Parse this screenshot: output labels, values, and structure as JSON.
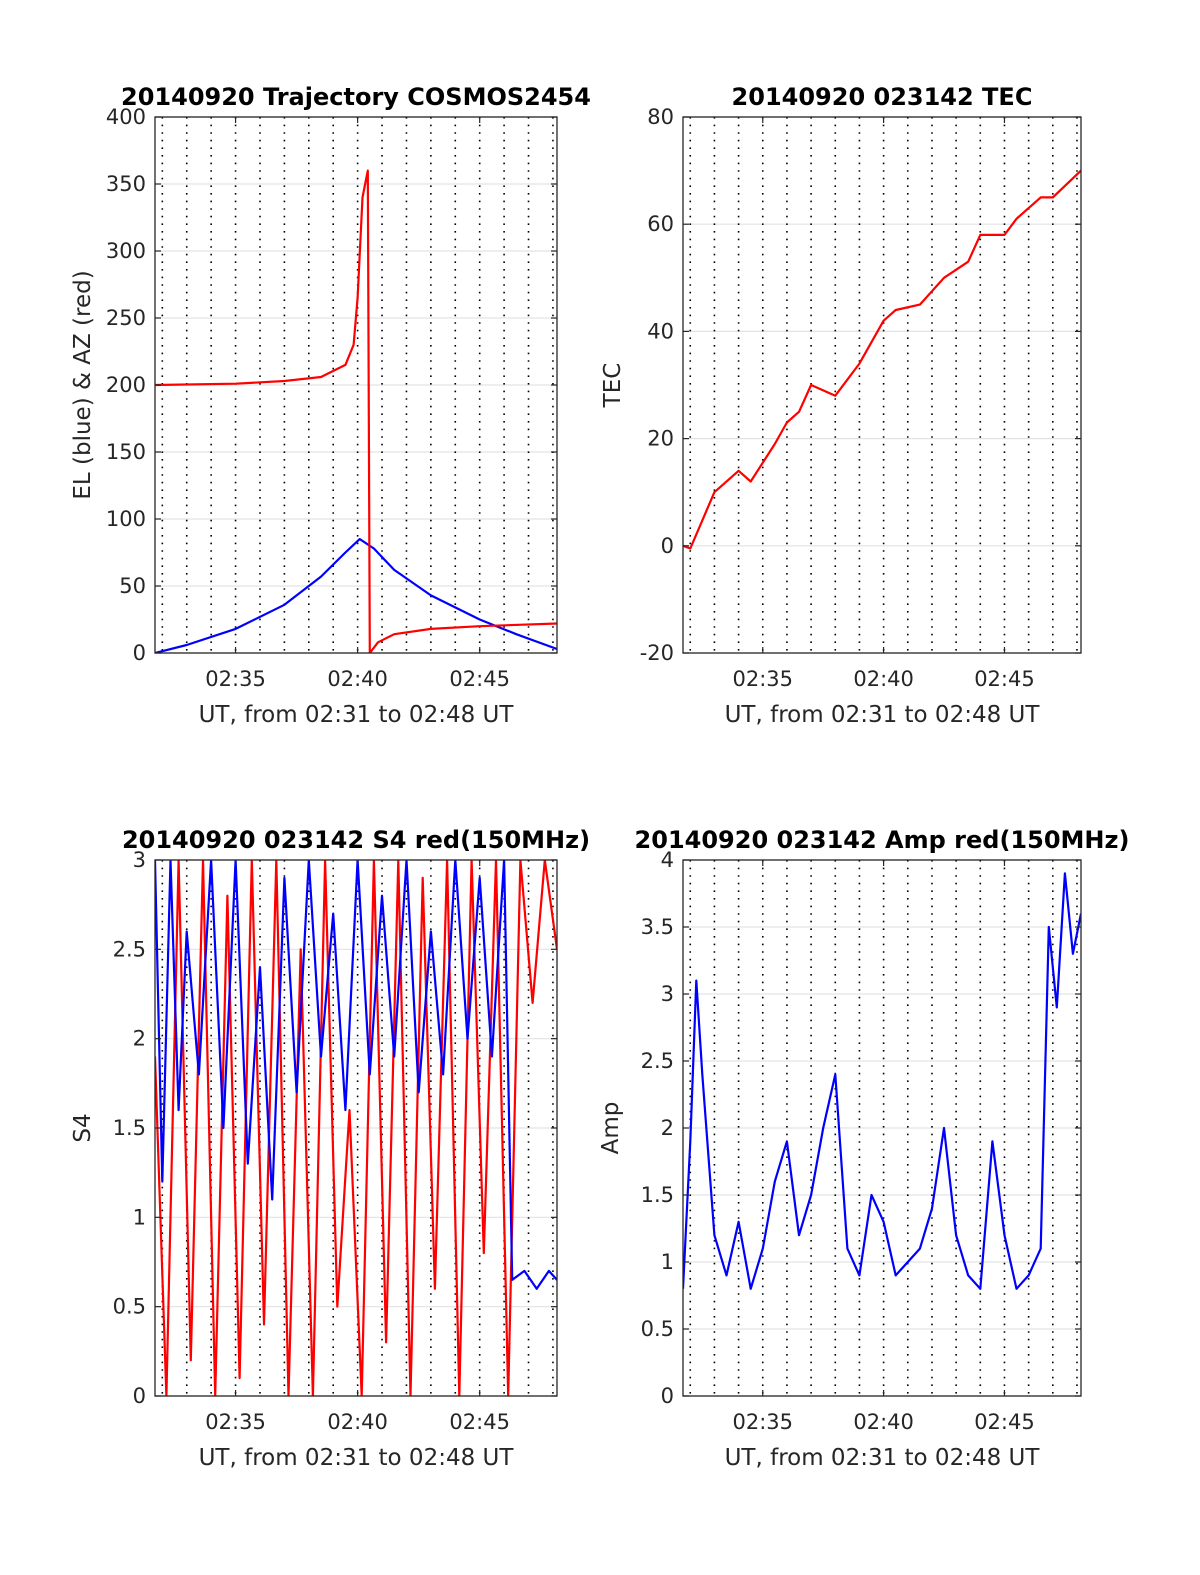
{
  "chart_data": [
    {
      "type": "line",
      "title": "20140920 Trajectory COSMOS2454",
      "xlabel": "UT, from 02:31 to 02:48 UT",
      "ylabel": "EL (blue) & AZ (red)",
      "x_range": [
        "02:31:42",
        "02:48:10"
      ],
      "ylim": [
        0,
        400
      ],
      "x_ticks": [
        "02:35",
        "02:40",
        "02:45"
      ],
      "y_ticks": [
        "0",
        "50",
        "100",
        "150",
        "200",
        "250",
        "300",
        "350",
        "400"
      ],
      "grid": true,
      "series": [
        {
          "color": "#0000ff",
          "points": [
            [
              "02:31:42",
              0
            ],
            [
              "02:33:00",
              6
            ],
            [
              "02:35:00",
              18
            ],
            [
              "02:37:00",
              36
            ],
            [
              "02:38:30",
              57
            ],
            [
              "02:39:30",
              75
            ],
            [
              "02:40:05",
              85
            ],
            [
              "02:40:40",
              78
            ],
            [
              "02:41:30",
              62
            ],
            [
              "02:43:00",
              43
            ],
            [
              "02:45:00",
              25
            ],
            [
              "02:46:30",
              14
            ],
            [
              "02:48:10",
              3
            ]
          ]
        },
        {
          "color": "#ff0000",
          "points": [
            [
              "02:31:42",
              200
            ],
            [
              "02:35:00",
              201
            ],
            [
              "02:37:00",
              203
            ],
            [
              "02:38:30",
              206
            ],
            [
              "02:39:30",
              215
            ],
            [
              "02:39:50",
              230
            ],
            [
              "02:40:00",
              265
            ],
            [
              "02:40:12",
              340
            ],
            [
              "02:40:25",
              360
            ],
            [
              "02:40:30",
              0
            ],
            [
              "02:40:50",
              8
            ],
            [
              "02:41:30",
              14
            ],
            [
              "02:43:00",
              18
            ],
            [
              "02:45:00",
              20
            ],
            [
              "02:48:10",
              22
            ]
          ]
        }
      ]
    },
    {
      "type": "line",
      "title": "20140920 023142 TEC",
      "xlabel": "UT, from 02:31 to 02:48 UT",
      "ylabel": "TEC",
      "x_range": [
        "02:31:42",
        "02:48:10"
      ],
      "ylim": [
        -20,
        80
      ],
      "x_ticks": [
        "02:35",
        "02:40",
        "02:45"
      ],
      "y_ticks": [
        "-20",
        "0",
        "20",
        "40",
        "60",
        "80"
      ],
      "grid": true,
      "series": [
        {
          "color": "#ff0000",
          "points": [
            [
              "02:31:42",
              0
            ],
            [
              "02:32:00",
              -0.5
            ],
            [
              "02:33:00",
              10
            ],
            [
              "02:34:00",
              14
            ],
            [
              "02:34:30",
              12
            ],
            [
              "02:35:30",
              19
            ],
            [
              "02:36:00",
              23
            ],
            [
              "02:36:30",
              25
            ],
            [
              "02:37:00",
              30
            ],
            [
              "02:37:30",
              29
            ],
            [
              "02:38:00",
              28
            ],
            [
              "02:39:00",
              34
            ],
            [
              "02:40:00",
              42
            ],
            [
              "02:40:30",
              44
            ],
            [
              "02:41:30",
              45
            ],
            [
              "02:42:30",
              50
            ],
            [
              "02:43:30",
              53
            ],
            [
              "02:44:00",
              58
            ],
            [
              "02:45:00",
              58
            ],
            [
              "02:45:30",
              61
            ],
            [
              "02:46:30",
              65
            ],
            [
              "02:47:00",
              65
            ],
            [
              "02:48:10",
              70
            ]
          ]
        }
      ]
    },
    {
      "type": "line",
      "title": "20140920 023142 S4 red(150MHz)",
      "xlabel": "UT, from 02:31 to 02:48 UT",
      "ylabel": "S4",
      "x_range": [
        "02:31:42",
        "02:48:10"
      ],
      "ylim": [
        0,
        3
      ],
      "x_ticks": [
        "02:35",
        "02:40",
        "02:45"
      ],
      "y_ticks": [
        "0",
        "0.5",
        "1",
        "1.5",
        "2",
        "2.5",
        "3"
      ],
      "grid": true,
      "series": [
        {
          "color": "#ff0000",
          "points": [
            [
              "02:31:42",
              1.9
            ],
            [
              "02:32:10",
              0
            ],
            [
              "02:32:40",
              3
            ],
            [
              "02:33:10",
              0.2
            ],
            [
              "02:33:40",
              3
            ],
            [
              "02:34:10",
              0
            ],
            [
              "02:34:40",
              2.8
            ],
            [
              "02:35:10",
              0.1
            ],
            [
              "02:35:40",
              3
            ],
            [
              "02:36:10",
              0.4
            ],
            [
              "02:36:40",
              3
            ],
            [
              "02:37:10",
              0
            ],
            [
              "02:37:40",
              2.5
            ],
            [
              "02:38:10",
              0
            ],
            [
              "02:38:40",
              3
            ],
            [
              "02:39:10",
              0.5
            ],
            [
              "02:39:40",
              1.6
            ],
            [
              "02:40:10",
              0
            ],
            [
              "02:40:40",
              3
            ],
            [
              "02:41:10",
              0.3
            ],
            [
              "02:41:40",
              3
            ],
            [
              "02:42:10",
              0
            ],
            [
              "02:42:40",
              2.9
            ],
            [
              "02:43:10",
              0.6
            ],
            [
              "02:43:40",
              3
            ],
            [
              "02:44:10",
              0
            ],
            [
              "02:44:40",
              3
            ],
            [
              "02:45:10",
              0.8
            ],
            [
              "02:45:40",
              3
            ],
            [
              "02:46:10",
              0
            ],
            [
              "02:46:40",
              3
            ],
            [
              "02:47:10",
              2.2
            ],
            [
              "02:47:40",
              3
            ],
            [
              "02:48:10",
              2.5
            ]
          ]
        },
        {
          "color": "#0000ff",
          "points": [
            [
              "02:31:42",
              3
            ],
            [
              "02:32:00",
              1.2
            ],
            [
              "02:32:20",
              3
            ],
            [
              "02:32:40",
              1.6
            ],
            [
              "02:33:00",
              2.6
            ],
            [
              "02:33:30",
              1.8
            ],
            [
              "02:34:00",
              3
            ],
            [
              "02:34:30",
              1.5
            ],
            [
              "02:35:00",
              3
            ],
            [
              "02:35:30",
              1.3
            ],
            [
              "02:36:00",
              2.4
            ],
            [
              "02:36:30",
              1.1
            ],
            [
              "02:37:00",
              2.9
            ],
            [
              "02:37:30",
              1.7
            ],
            [
              "02:38:00",
              3
            ],
            [
              "02:38:30",
              1.9
            ],
            [
              "02:39:00",
              2.7
            ],
            [
              "02:39:30",
              1.6
            ],
            [
              "02:40:00",
              3
            ],
            [
              "02:40:30",
              1.8
            ],
            [
              "02:41:00",
              2.8
            ],
            [
              "02:41:30",
              1.9
            ],
            [
              "02:42:00",
              3
            ],
            [
              "02:42:30",
              1.7
            ],
            [
              "02:43:00",
              2.6
            ],
            [
              "02:43:30",
              1.8
            ],
            [
              "02:44:00",
              3
            ],
            [
              "02:44:30",
              2.0
            ],
            [
              "02:45:00",
              2.9
            ],
            [
              "02:45:30",
              1.9
            ],
            [
              "02:46:00",
              3
            ],
            [
              "02:46:20",
              0.65
            ],
            [
              "02:46:50",
              0.7
            ],
            [
              "02:47:20",
              0.6
            ],
            [
              "02:47:50",
              0.7
            ],
            [
              "02:48:10",
              0.65
            ]
          ]
        }
      ]
    },
    {
      "type": "line",
      "title": "20140920 023142 Amp red(150MHz)",
      "xlabel": "UT, from 02:31 to 02:48 UT",
      "ylabel": "Amp",
      "x_range": [
        "02:31:42",
        "02:48:10"
      ],
      "ylim": [
        0,
        4
      ],
      "x_ticks": [
        "02:35",
        "02:40",
        "02:45"
      ],
      "y_ticks": [
        "0",
        "0.5",
        "1",
        "1.5",
        "2",
        "2.5",
        "3",
        "3.5",
        "4"
      ],
      "grid": true,
      "series": [
        {
          "color": "#0000ff",
          "points": [
            [
              "02:31:42",
              0.8
            ],
            [
              "02:32:00",
              1.9
            ],
            [
              "02:32:15",
              3.1
            ],
            [
              "02:32:30",
              2.4
            ],
            [
              "02:33:00",
              1.2
            ],
            [
              "02:33:30",
              0.9
            ],
            [
              "02:34:00",
              1.3
            ],
            [
              "02:34:30",
              0.8
            ],
            [
              "02:35:00",
              1.1
            ],
            [
              "02:35:30",
              1.6
            ],
            [
              "02:36:00",
              1.9
            ],
            [
              "02:36:30",
              1.2
            ],
            [
              "02:37:00",
              1.5
            ],
            [
              "02:37:30",
              2.0
            ],
            [
              "02:38:00",
              2.4
            ],
            [
              "02:38:30",
              1.1
            ],
            [
              "02:39:00",
              0.9
            ],
            [
              "02:39:30",
              1.5
            ],
            [
              "02:40:00",
              1.3
            ],
            [
              "02:40:30",
              0.9
            ],
            [
              "02:41:00",
              1.0
            ],
            [
              "02:41:30",
              1.1
            ],
            [
              "02:42:00",
              1.4
            ],
            [
              "02:42:30",
              2.0
            ],
            [
              "02:43:00",
              1.2
            ],
            [
              "02:43:30",
              0.9
            ],
            [
              "02:44:00",
              0.8
            ],
            [
              "02:44:30",
              1.9
            ],
            [
              "02:45:00",
              1.2
            ],
            [
              "02:45:30",
              0.8
            ],
            [
              "02:46:00",
              0.9
            ],
            [
              "02:46:30",
              1.1
            ],
            [
              "02:46:50",
              3.5
            ],
            [
              "02:47:10",
              2.9
            ],
            [
              "02:47:30",
              3.9
            ],
            [
              "02:47:50",
              3.3
            ],
            [
              "02:48:10",
              3.6
            ]
          ]
        }
      ]
    }
  ]
}
